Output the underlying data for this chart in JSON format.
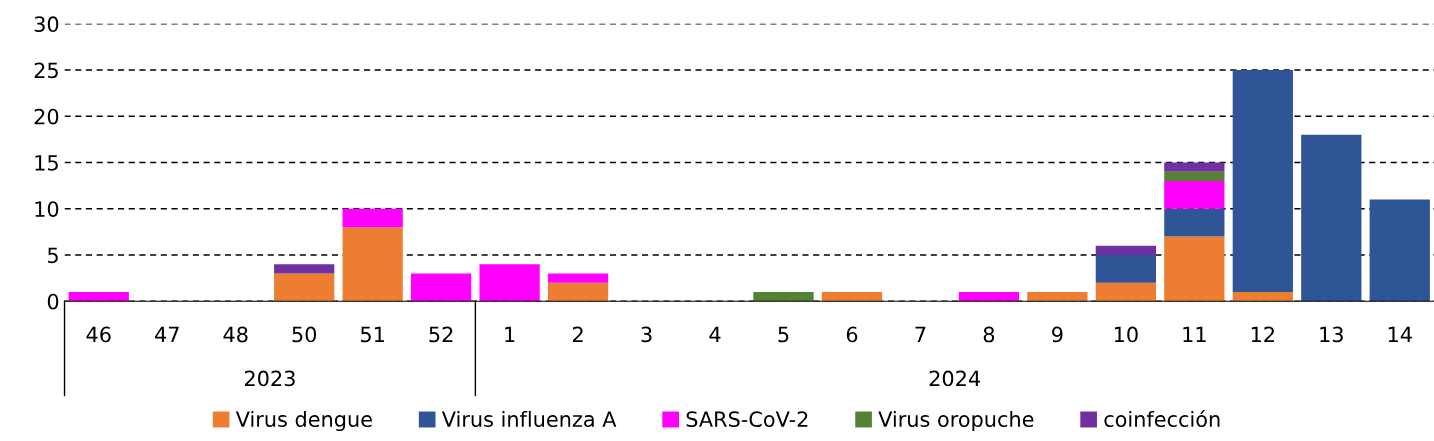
{
  "chart_data": {
    "type": "bar",
    "stacked": true,
    "categories": [
      "46",
      "47",
      "48",
      "50",
      "51",
      "52",
      "1",
      "2",
      "3",
      "4",
      "5",
      "6",
      "7",
      "8",
      "9",
      "10",
      "11",
      "12",
      "13",
      "14"
    ],
    "series": [
      {
        "name": "Virus dengue",
        "color": "#ed7d31",
        "values": [
          0,
          0,
          0,
          3,
          8,
          0,
          0,
          2,
          0,
          0,
          0,
          1,
          0,
          0,
          1,
          2,
          7,
          1,
          0,
          0
        ]
      },
      {
        "name": "Virus influenza A",
        "color": "#2f5597",
        "values": [
          0,
          0,
          0,
          0,
          0,
          0,
          0,
          0,
          0,
          0,
          0,
          0,
          0,
          0,
          0,
          3,
          3,
          24,
          18,
          11
        ]
      },
      {
        "name": "SARS-CoV-2",
        "color": "#ff00ff",
        "values": [
          1,
          0,
          0,
          0,
          2,
          3,
          4,
          1,
          0,
          0,
          0,
          0,
          0,
          1,
          0,
          0,
          3,
          0,
          0,
          0
        ]
      },
      {
        "name": "Virus oropuche",
        "color": "#548235",
        "values": [
          0,
          0,
          0,
          0,
          0,
          0,
          0,
          0,
          0,
          0,
          1,
          0,
          0,
          0,
          0,
          0,
          1,
          0,
          0,
          0
        ]
      },
      {
        "name": "coinfección",
        "color": "#7030a0",
        "values": [
          0,
          0,
          0,
          1,
          0,
          0,
          0,
          0,
          0,
          0,
          0,
          0,
          0,
          0,
          0,
          1,
          1,
          0,
          0,
          0
        ]
      }
    ],
    "ylim": [
      0,
      30
    ],
    "yticks": [
      0,
      5,
      10,
      15,
      20,
      25,
      30
    ],
    "grid": "y",
    "legend": "bottom",
    "annotations": [
      "2023",
      "2024"
    ]
  }
}
